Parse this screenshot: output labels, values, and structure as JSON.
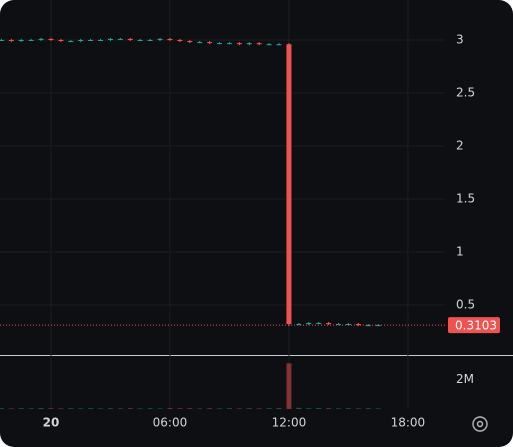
{
  "chart_data": {
    "type": "candlestick",
    "x": [
      -2.5,
      -2,
      -1.5,
      -1,
      -0.5,
      0,
      0.5,
      1,
      1.5,
      2,
      2.5,
      3,
      3.5,
      4,
      4.5,
      5,
      5.5,
      6,
      6.5,
      7,
      7.5,
      8,
      8.5,
      9,
      9.5,
      10,
      10.5,
      11,
      11.5,
      12,
      12.5,
      13,
      13.5,
      14,
      14.5,
      15,
      15.5,
      16,
      16.5
    ],
    "open": [
      3.0,
      3.0,
      2.99,
      3.0,
      3.0,
      3.01,
      3.0,
      2.99,
      2.99,
      3.0,
      3.0,
      3.0,
      3.01,
      3.01,
      3.0,
      3.0,
      3.0,
      3.01,
      3.0,
      2.99,
      2.98,
      2.98,
      2.97,
      2.97,
      2.97,
      2.96,
      2.97,
      2.96,
      2.96,
      2.96,
      0.32,
      0.32,
      0.33,
      0.33,
      0.32,
      0.32,
      0.32,
      0.31,
      0.31
    ],
    "high": [
      3.01,
      3.01,
      3.01,
      3.01,
      3.02,
      3.02,
      3.01,
      3.0,
      3.01,
      3.01,
      3.01,
      3.02,
      3.02,
      3.02,
      3.01,
      3.01,
      3.02,
      3.02,
      3.01,
      3.0,
      2.99,
      2.99,
      2.98,
      2.98,
      2.98,
      2.98,
      2.98,
      2.97,
      2.97,
      2.97,
      0.33,
      0.34,
      0.34,
      0.34,
      0.33,
      0.33,
      0.33,
      0.32,
      0.32
    ],
    "low": [
      2.99,
      2.98,
      2.98,
      2.99,
      2.99,
      2.99,
      2.98,
      2.98,
      2.98,
      2.99,
      2.99,
      2.99,
      3.0,
      2.99,
      2.99,
      2.99,
      2.99,
      2.99,
      2.98,
      2.97,
      2.97,
      2.96,
      2.96,
      2.96,
      2.95,
      2.95,
      2.95,
      2.95,
      2.95,
      0.3,
      0.31,
      0.31,
      0.32,
      0.31,
      0.31,
      0.31,
      0.3,
      0.3,
      0.3
    ],
    "close": [
      3.0,
      2.99,
      3.0,
      3.0,
      3.01,
      3.0,
      2.99,
      2.99,
      3.0,
      3.0,
      3.0,
      3.01,
      3.01,
      3.0,
      3.0,
      3.0,
      3.01,
      3.0,
      2.99,
      2.98,
      2.98,
      2.97,
      2.97,
      2.97,
      2.96,
      2.97,
      2.96,
      2.96,
      2.96,
      0.32,
      0.32,
      0.33,
      0.33,
      0.32,
      0.32,
      0.32,
      0.31,
      0.31,
      0.3103
    ],
    "volume": [
      0.05,
      0.04,
      0.05,
      0.04,
      0.06,
      0.05,
      0.04,
      0.05,
      0.04,
      0.05,
      0.04,
      0.05,
      0.04,
      0.05,
      0.04,
      0.05,
      0.04,
      0.06,
      0.05,
      0.05,
      0.04,
      0.05,
      0.04,
      0.05,
      0.04,
      0.05,
      0.04,
      0.05,
      0.06,
      3.1,
      0.08,
      0.05,
      0.06,
      0.05,
      0.04,
      0.05,
      0.04,
      0.05,
      0.04
    ],
    "up_color": "#26a69a",
    "down_color": "#ef5350",
    "xlim": [
      -2.57,
      19.87
    ],
    "xticks": [
      {
        "value": 0,
        "label": "20"
      },
      {
        "value": 6,
        "label": "06:00"
      },
      {
        "value": 12,
        "label": "12:00"
      },
      {
        "value": 18,
        "label": "18:00"
      }
    ],
    "ylim": [
      0.028,
      3.377
    ],
    "yticks": [
      0.5,
      1,
      1.5,
      2,
      2.5,
      3
    ],
    "volume_lim": [
      0,
      3.6
    ],
    "volume_ticks": [
      {
        "value": 2,
        "label": "2M"
      }
    ],
    "last_price": 0.3103,
    "grid": true
  }
}
